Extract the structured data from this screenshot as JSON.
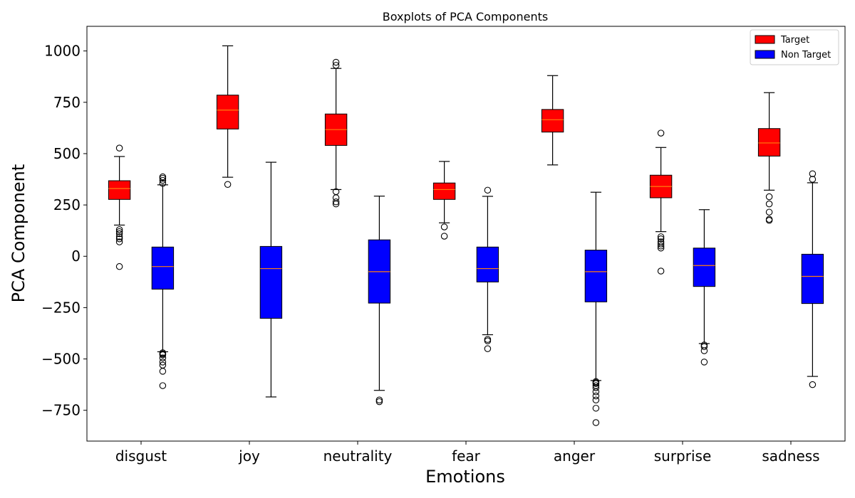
{
  "chart_data": {
    "type": "boxplot",
    "title": "Boxplots of PCA Components",
    "xlabel": "Emotions",
    "ylabel": "PCA Component",
    "ylim": [
      -900,
      1120
    ],
    "yticks": [
      -750,
      -500,
      -250,
      0,
      250,
      500,
      750,
      1000
    ],
    "ytick_labels": [
      "−750",
      "−500",
      "−250",
      "0",
      "250",
      "500",
      "750",
      "1000"
    ],
    "grid": false,
    "legend_position": "top-right",
    "categories": [
      "disgust",
      "joy",
      "neutrality",
      "fear",
      "anger",
      "surprise",
      "sadness"
    ],
    "series": [
      {
        "name": "Target",
        "color": "#ff0000",
        "boxes": [
          {
            "whislo": 152,
            "q1": 277,
            "med": 330,
            "q3": 368,
            "whishi": 486,
            "fliers": [
              527,
              130,
              120,
              110,
              95,
              85,
              70,
              -50
            ]
          },
          {
            "whislo": 385,
            "q1": 620,
            "med": 712,
            "q3": 785,
            "whishi": 1025,
            "fliers": [
              350
            ]
          },
          {
            "whislo": 325,
            "q1": 540,
            "med": 617,
            "q3": 693,
            "whishi": 915,
            "fliers": [
              945,
              930,
              315,
              285,
              265,
              255
            ]
          },
          {
            "whislo": 163,
            "q1": 277,
            "med": 325,
            "q3": 357,
            "whishi": 462,
            "fliers": [
              143,
              98
            ]
          },
          {
            "whislo": 445,
            "q1": 605,
            "med": 665,
            "q3": 715,
            "whishi": 880,
            "fliers": []
          },
          {
            "whislo": 120,
            "q1": 285,
            "med": 340,
            "q3": 395,
            "whishi": 530,
            "fliers": [
              600,
              95,
              85,
              70,
              60,
              50,
              40,
              -72
            ]
          },
          {
            "whislo": 322,
            "q1": 488,
            "med": 552,
            "q3": 622,
            "whishi": 797,
            "fliers": [
              290,
              255,
              215,
              180,
              175
            ]
          }
        ]
      },
      {
        "name": "Non Target",
        "color": "#0000ff",
        "boxes": [
          {
            "whislo": -465,
            "q1": -160,
            "med": -50,
            "q3": 45,
            "whishi": 348,
            "fliers": [
              387,
              380,
              370,
              355,
              -470,
              -475,
              -480,
              -495,
              -515,
              -530,
              -560,
              -630
            ]
          },
          {
            "whislo": -685,
            "q1": -302,
            "med": -60,
            "q3": 48,
            "whishi": 458,
            "fliers": []
          },
          {
            "whislo": -653,
            "q1": -228,
            "med": -75,
            "q3": 80,
            "whishi": 293,
            "fliers": [
              -700,
              -708
            ]
          },
          {
            "whislo": -382,
            "q1": -125,
            "med": -60,
            "q3": 45,
            "whishi": 292,
            "fliers": [
              322,
              -405,
              -412,
              -450
            ]
          },
          {
            "whislo": -605,
            "q1": -222,
            "med": -75,
            "q3": 30,
            "whishi": 312,
            "fliers": [
              -610,
              -615,
              -620,
              -630,
              -640,
              -660,
              -680,
              -700,
              -740,
              -810
            ]
          },
          {
            "whislo": -425,
            "q1": -147,
            "med": -45,
            "q3": 40,
            "whishi": 227,
            "fliers": [
              -432,
              -440,
              -460,
              -515
            ]
          },
          {
            "whislo": -585,
            "q1": -230,
            "med": -98,
            "q3": 10,
            "whishi": 358,
            "fliers": [
              402,
              375,
              -625
            ]
          }
        ]
      }
    ]
  }
}
